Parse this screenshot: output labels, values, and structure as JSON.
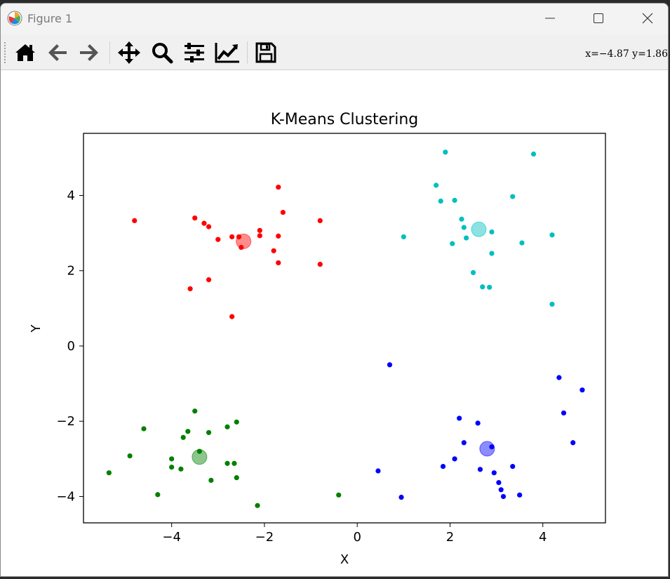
{
  "window": {
    "title": "Figure 1",
    "controls": [
      "minimize-icon",
      "maximize-icon",
      "close-icon"
    ]
  },
  "toolbar": {
    "buttons": [
      {
        "name": "home-button",
        "icon": "home-icon"
      },
      {
        "name": "back-button",
        "icon": "arrow-left-icon"
      },
      {
        "name": "forward-button",
        "icon": "arrow-right-icon"
      },
      {
        "name": "pan-button",
        "icon": "move-icon"
      },
      {
        "name": "zoom-button",
        "icon": "magnifier-icon"
      },
      {
        "name": "configure-subplots-button",
        "icon": "sliders-icon"
      },
      {
        "name": "edit-axis-button",
        "icon": "line-chart-icon"
      },
      {
        "name": "save-button",
        "icon": "save-icon"
      }
    ],
    "coordinates": "x=−4.87  y=1.86"
  },
  "chart_data": {
    "type": "scatter",
    "title": "K-Means Clustering",
    "xlabel": "X",
    "ylabel": "Y",
    "xlim": [
      -5.9,
      5.35
    ],
    "ylim": [
      -4.7,
      5.65
    ],
    "xticks": [
      -4,
      -2,
      0,
      2,
      4
    ],
    "yticks": [
      -4,
      -2,
      0,
      2,
      4
    ],
    "xtick_labels": [
      "−4",
      "−2",
      "0",
      "2",
      "4"
    ],
    "ytick_labels": [
      "−4",
      "−2",
      "0",
      "2",
      "4"
    ],
    "grid": false,
    "series": [
      {
        "color": "#ff0000",
        "points": [
          [
            -4.8,
            3.33
          ],
          [
            -3.5,
            3.4
          ],
          [
            -3.3,
            3.26
          ],
          [
            -3.2,
            3.17
          ],
          [
            -1.7,
            4.22
          ],
          [
            -1.6,
            3.55
          ],
          [
            -0.8,
            3.33
          ],
          [
            -2.7,
            2.9
          ],
          [
            -2.55,
            2.9
          ],
          [
            -3.0,
            2.83
          ],
          [
            -2.1,
            3.07
          ],
          [
            -2.1,
            2.93
          ],
          [
            -1.7,
            2.92
          ],
          [
            -2.5,
            2.62
          ],
          [
            -1.8,
            2.53
          ],
          [
            -1.7,
            2.21
          ],
          [
            -0.8,
            2.17
          ],
          [
            -3.2,
            1.76
          ],
          [
            -3.6,
            1.52
          ],
          [
            -2.7,
            0.78
          ]
        ],
        "centroid": [
          -2.45,
          2.78
        ]
      },
      {
        "color": "#00bfbf",
        "points": [
          [
            1.9,
            5.15
          ],
          [
            3.8,
            5.1
          ],
          [
            1.7,
            4.27
          ],
          [
            3.35,
            3.97
          ],
          [
            1.8,
            3.85
          ],
          [
            2.1,
            3.87
          ],
          [
            2.25,
            3.37
          ],
          [
            2.3,
            3.15
          ],
          [
            2.9,
            3.03
          ],
          [
            4.2,
            2.95
          ],
          [
            1.0,
            2.9
          ],
          [
            2.35,
            2.87
          ],
          [
            2.05,
            2.72
          ],
          [
            3.55,
            2.74
          ],
          [
            2.9,
            2.46
          ],
          [
            2.5,
            1.95
          ],
          [
            2.7,
            1.57
          ],
          [
            2.85,
            1.56
          ],
          [
            4.2,
            1.11
          ]
        ],
        "centroid": [
          2.62,
          3.1
        ]
      },
      {
        "color": "#0000ff",
        "points": [
          [
            0.7,
            -0.5
          ],
          [
            4.35,
            -0.84
          ],
          [
            4.85,
            -1.17
          ],
          [
            4.45,
            -1.78
          ],
          [
            2.2,
            -1.92
          ],
          [
            2.6,
            -2.05
          ],
          [
            4.65,
            -2.57
          ],
          [
            2.3,
            -2.57
          ],
          [
            2.9,
            -2.68
          ],
          [
            2.1,
            -3.0
          ],
          [
            1.85,
            -3.2
          ],
          [
            3.35,
            -3.2
          ],
          [
            2.65,
            -3.28
          ],
          [
            0.45,
            -3.32
          ],
          [
            2.95,
            -3.37
          ],
          [
            3.05,
            -3.63
          ],
          [
            3.1,
            -3.82
          ],
          [
            3.5,
            -3.96
          ],
          [
            3.15,
            -4.0
          ],
          [
            0.95,
            -4.02
          ]
        ],
        "centroid": [
          2.8,
          -2.73
        ]
      },
      {
        "color": "#008000",
        "points": [
          [
            -3.5,
            -1.73
          ],
          [
            -2.6,
            -2.02
          ],
          [
            -2.8,
            -2.15
          ],
          [
            -4.6,
            -2.2
          ],
          [
            -3.65,
            -2.27
          ],
          [
            -3.2,
            -2.3
          ],
          [
            -3.75,
            -2.43
          ],
          [
            -3.4,
            -2.8
          ],
          [
            -4.9,
            -2.92
          ],
          [
            -4.0,
            -3.0
          ],
          [
            -2.8,
            -3.12
          ],
          [
            -2.65,
            -3.12
          ],
          [
            -4.0,
            -3.22
          ],
          [
            -3.8,
            -3.27
          ],
          [
            -5.35,
            -3.37
          ],
          [
            -2.6,
            -3.5
          ],
          [
            -3.15,
            -3.57
          ],
          [
            -4.3,
            -3.95
          ],
          [
            -0.4,
            -3.96
          ],
          [
            -2.15,
            -4.24
          ]
        ],
        "centroid": [
          -3.4,
          -2.95
        ]
      }
    ]
  }
}
